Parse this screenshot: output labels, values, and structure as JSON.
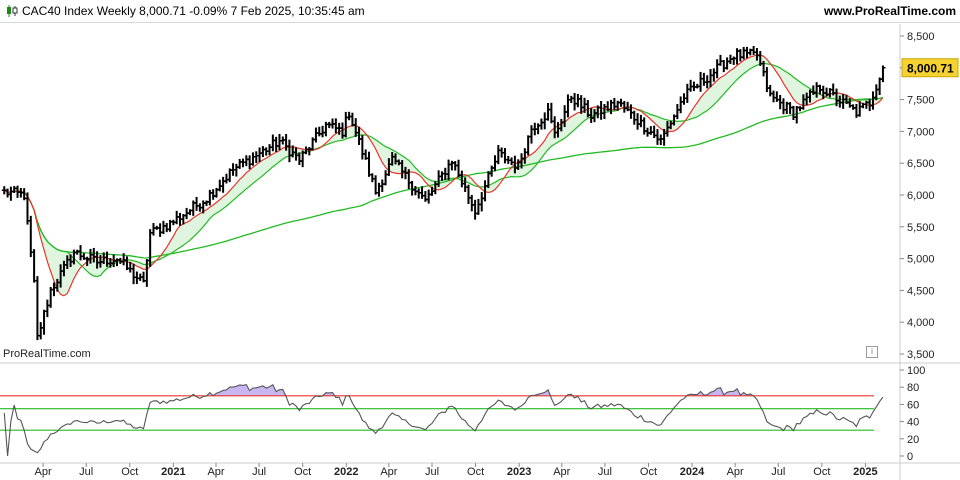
{
  "header": {
    "title": "CAC40 Index Weekly 8,000.71 -0.09% 7 Feb 2025, 10:35:45 am",
    "site": "www.ProRealTime.com"
  },
  "watermark": "ProRealTime.com",
  "colors": {
    "price_bars": "#000000",
    "ma_fast": "#e8352e",
    "ma_mid": "#22bb22",
    "ma_slow": "#22bb22",
    "fill_between": "#dff5df",
    "rsi_line": "#555555",
    "rsi_upper": "#e8352e",
    "rsi_mid": "#22bb22",
    "rsi_lower": "#22bb22",
    "rsi_overbought_fill": "#c9b6f0",
    "last_price_bg": "#f5d232"
  },
  "chart_data": [
    {
      "type": "ohlc",
      "title": "CAC40 Index Weekly",
      "last_price_label": "8,000.71",
      "y_ticks": [
        "8,500",
        "8,000",
        "7,500",
        "7,000",
        "6,500",
        "6,000",
        "5,500",
        "5,000",
        "4,500",
        "4,000",
        "3,500"
      ],
      "ylim": [
        3500,
        8600
      ],
      "x_ticks": [
        "Apr",
        "Jul",
        "Oct",
        "2021",
        "Apr",
        "Jul",
        "Oct",
        "2022",
        "Apr",
        "Jul",
        "Oct",
        "2023",
        "Apr",
        "Jul",
        "Oct",
        "2024",
        "Apr",
        "Jul",
        "Oct",
        "2025"
      ],
      "x_tick_bold": [
        false,
        false,
        false,
        true,
        false,
        false,
        false,
        true,
        false,
        false,
        false,
        true,
        false,
        false,
        false,
        true,
        false,
        false,
        false,
        true
      ],
      "xlim": [
        "2020-01-01",
        "2025-03-15"
      ],
      "price_anchors": [
        [
          "2020-01-10",
          6050
        ],
        [
          "2020-02-21",
          6000
        ],
        [
          "2020-03-13",
          4600
        ],
        [
          "2020-03-20",
          3750
        ],
        [
          "2020-04-17",
          4500
        ],
        [
          "2020-06-05",
          5100
        ],
        [
          "2020-07-24",
          4950
        ],
        [
          "2020-09-04",
          5000
        ],
        [
          "2020-10-30",
          4600
        ],
        [
          "2020-11-13",
          5400
        ],
        [
          "2020-12-25",
          5550
        ],
        [
          "2021-03-12",
          5950
        ],
        [
          "2021-05-07",
          6400
        ],
        [
          "2021-08-13",
          6850
        ],
        [
          "2021-09-24",
          6550
        ],
        [
          "2021-11-19",
          7100
        ],
        [
          "2021-12-24",
          7000
        ],
        [
          "2022-01-07",
          7300
        ],
        [
          "2022-03-04",
          6050
        ],
        [
          "2022-04-08",
          6550
        ],
        [
          "2022-06-17",
          5900
        ],
        [
          "2022-08-12",
          6550
        ],
        [
          "2022-09-30",
          5750
        ],
        [
          "2022-11-18",
          6650
        ],
        [
          "2022-12-30",
          6450
        ],
        [
          "2023-01-27",
          7050
        ],
        [
          "2023-03-03",
          7300
        ],
        [
          "2023-03-17",
          6950
        ],
        [
          "2023-04-21",
          7550
        ],
        [
          "2023-06-02",
          7250
        ],
        [
          "2023-07-28",
          7450
        ],
        [
          "2023-10-27",
          6850
        ],
        [
          "2023-12-15",
          7550
        ],
        [
          "2024-03-29",
          8200
        ],
        [
          "2024-05-17",
          8200
        ],
        [
          "2024-06-14",
          7550
        ],
        [
          "2024-08-02",
          7300
        ],
        [
          "2024-09-27",
          7700
        ],
        [
          "2024-12-13",
          7300
        ],
        [
          "2025-01-10",
          7450
        ],
        [
          "2025-02-07",
          8000
        ]
      ],
      "series": [
        {
          "name": "MA fast",
          "approx_period_weeks": 10
        },
        {
          "name": "MA mid",
          "approx_period_weeks": 20
        },
        {
          "name": "MA slow",
          "approx_period_weeks": 100
        }
      ]
    },
    {
      "type": "line",
      "indicator": "RSI",
      "y_ticks": [
        "100",
        "80",
        "60",
        "40",
        "20",
        "0"
      ],
      "ylim": [
        0,
        100
      ],
      "levels": [
        70,
        55,
        30
      ]
    }
  ]
}
